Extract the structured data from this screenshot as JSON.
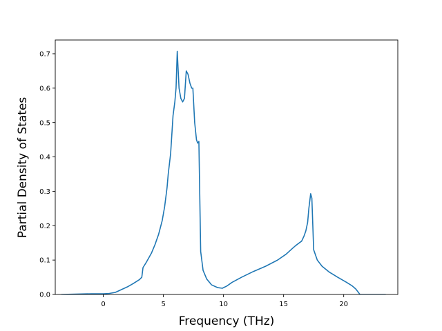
{
  "chart_data": {
    "type": "line",
    "title": "",
    "xlabel": "Frequency (THz)",
    "ylabel": "Partial Density of States",
    "xlim": [
      -4.0,
      24.5
    ],
    "ylim": [
      0.0,
      0.74
    ],
    "xticks": [
      0,
      5,
      10,
      15,
      20
    ],
    "xtick_labels": [
      "0",
      "5",
      "10",
      "15",
      "20"
    ],
    "yticks": [
      0.0,
      0.1,
      0.2,
      0.3,
      0.4,
      0.5,
      0.6,
      0.7
    ],
    "ytick_labels": [
      "0.0",
      "0.1",
      "0.2",
      "0.3",
      "0.4",
      "0.5",
      "0.6",
      "0.7"
    ],
    "grid": false,
    "line_color": "#1f77b4",
    "series": [
      {
        "x": [
          -3.5,
          -1.0,
          0.0,
          0.5,
          1.0,
          1.5,
          2.0,
          2.5,
          3.0,
          3.2,
          3.3,
          3.6,
          4.0,
          4.3,
          4.6,
          4.9,
          5.1,
          5.3,
          5.4,
          5.6,
          5.8,
          5.95,
          6.05,
          6.15,
          6.3,
          6.45,
          6.6,
          6.75,
          6.9,
          7.05,
          7.2,
          7.35,
          7.45,
          7.6,
          7.75,
          7.85,
          7.95,
          8.1,
          8.3,
          8.6,
          9.0,
          9.5,
          9.9,
          10.3,
          10.7,
          11.5,
          12.5,
          13.5,
          14.5,
          15.2,
          15.8,
          16.0,
          16.3,
          16.5,
          16.7,
          16.85,
          17.0,
          17.1,
          17.25,
          17.35,
          17.5,
          17.8,
          18.2,
          18.8,
          19.5,
          20.2,
          20.7,
          21.0,
          21.2,
          21.35,
          21.6,
          23.5
        ],
        "y": [
          0.0,
          0.002,
          0.002,
          0.003,
          0.006,
          0.014,
          0.022,
          0.032,
          0.043,
          0.05,
          0.078,
          0.095,
          0.12,
          0.145,
          0.175,
          0.215,
          0.255,
          0.31,
          0.35,
          0.41,
          0.52,
          0.56,
          0.6,
          0.707,
          0.6,
          0.57,
          0.56,
          0.57,
          0.65,
          0.64,
          0.615,
          0.6,
          0.6,
          0.5,
          0.45,
          0.44,
          0.445,
          0.125,
          0.07,
          0.045,
          0.028,
          0.02,
          0.018,
          0.025,
          0.035,
          0.05,
          0.067,
          0.082,
          0.1,
          0.117,
          0.136,
          0.142,
          0.15,
          0.155,
          0.17,
          0.185,
          0.21,
          0.25,
          0.293,
          0.28,
          0.13,
          0.1,
          0.082,
          0.065,
          0.05,
          0.036,
          0.025,
          0.016,
          0.007,
          0.0,
          0.0,
          0.0
        ]
      }
    ]
  }
}
